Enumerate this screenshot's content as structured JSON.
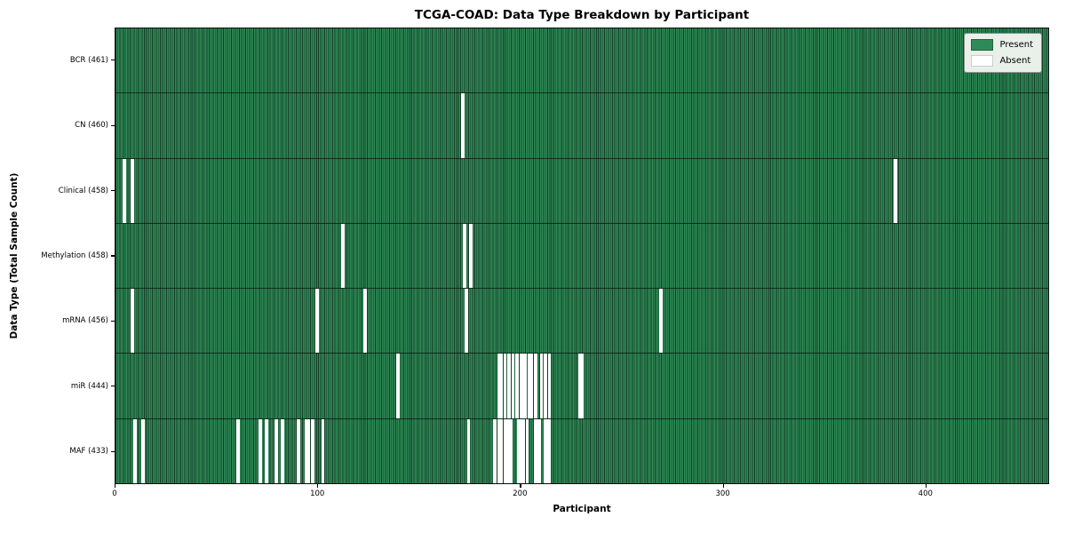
{
  "legend": {
    "present_label": "Present",
    "absent_label": "Absent"
  },
  "colors": {
    "present": "#2e8b57",
    "present_edge": "#143c26",
    "absent": "#ffffff",
    "legend_bg": "#e9efe9",
    "border": "#0d0d0d"
  },
  "chart_data": {
    "type": "heatmap",
    "title": "TCGA-COAD: Data Type Breakdown by Participant",
    "xlabel": "Participant",
    "ylabel": "Data Type (Total Sample Count)",
    "legend_entries": [
      "Present",
      "Absent"
    ],
    "legend_position": "upper right",
    "n_participants": 461,
    "x_ticks": [
      0,
      100,
      200,
      300,
      400
    ],
    "x_range": [
      0,
      461
    ],
    "grid": false,
    "rows": [
      {
        "data_type": "BCR",
        "label": "BCR (461)",
        "present_count": 461,
        "absent_ranges": []
      },
      {
        "data_type": "CN",
        "label": "CN (460)",
        "present_count": 460,
        "absent_ranges": [
          [
            171,
            171
          ]
        ]
      },
      {
        "data_type": "Clinical",
        "label": "Clinical (458)",
        "present_count": 458,
        "absent_ranges": [
          [
            4,
            4
          ],
          [
            8,
            8
          ],
          [
            385,
            385
          ]
        ]
      },
      {
        "data_type": "Methylation",
        "label": "Methylation (458)",
        "present_count": 458,
        "absent_ranges": [
          [
            112,
            112
          ],
          [
            172,
            172
          ],
          [
            175,
            175
          ]
        ]
      },
      {
        "data_type": "mRNA",
        "label": "mRNA (456)",
        "present_count": 456,
        "absent_ranges": [
          [
            8,
            8
          ],
          [
            99,
            99
          ],
          [
            123,
            123
          ],
          [
            173,
            173
          ],
          [
            269,
            269
          ]
        ]
      },
      {
        "data_type": "miR",
        "label": "miR (444)",
        "present_count": 444,
        "absent_ranges": [
          [
            139,
            139
          ],
          [
            189,
            190
          ],
          [
            192,
            192
          ],
          [
            194,
            194
          ],
          [
            196,
            196
          ],
          [
            198,
            198
          ],
          [
            200,
            200
          ],
          [
            202,
            202
          ],
          [
            204,
            205
          ],
          [
            207,
            207
          ],
          [
            210,
            210
          ],
          [
            212,
            212
          ],
          [
            214,
            214
          ],
          [
            229,
            230
          ]
        ]
      },
      {
        "data_type": "MAF",
        "label": "MAF (433)",
        "present_count": 433,
        "absent_ranges": [
          [
            9,
            9
          ],
          [
            13,
            13
          ],
          [
            60,
            60
          ],
          [
            71,
            71
          ],
          [
            74,
            74
          ],
          [
            79,
            79
          ],
          [
            82,
            82
          ],
          [
            90,
            90
          ],
          [
            94,
            95
          ],
          [
            97,
            97
          ],
          [
            102,
            102
          ],
          [
            174,
            174
          ],
          [
            187,
            187
          ],
          [
            189,
            189
          ],
          [
            190,
            190
          ],
          [
            192,
            192
          ],
          [
            193,
            193
          ],
          [
            195,
            195
          ],
          [
            199,
            199
          ],
          [
            200,
            201
          ],
          [
            203,
            203
          ],
          [
            207,
            207
          ],
          [
            209,
            209
          ],
          [
            212,
            213
          ],
          [
            214,
            214
          ]
        ]
      }
    ]
  }
}
